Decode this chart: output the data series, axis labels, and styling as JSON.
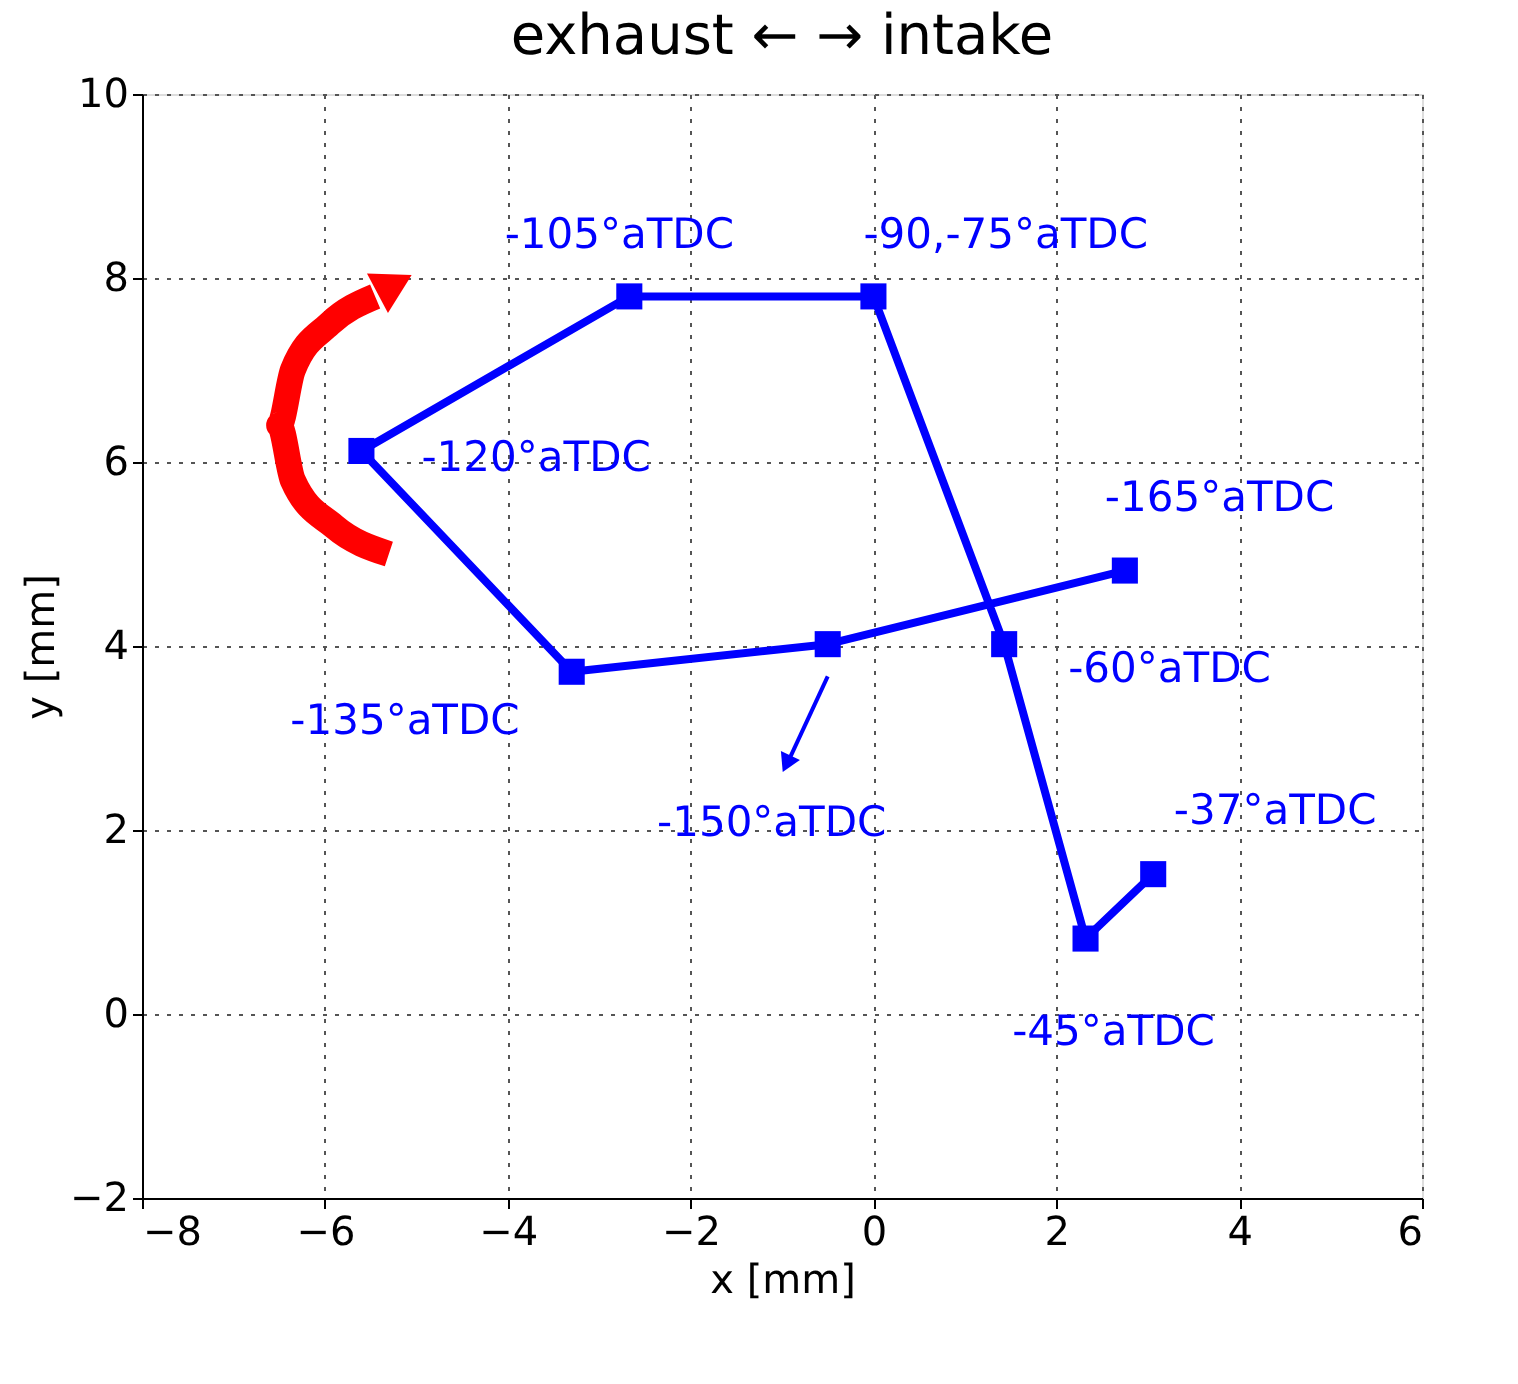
{
  "chart_data": {
    "type": "line",
    "title": "exhaust ← → intake",
    "xlabel": "x [mm]",
    "ylabel": "y [mm]",
    "series": [
      {
        "color": "#0000ff",
        "x": [
          2.75,
          -0.5,
          -3.3,
          -5.6,
          -2.67,
          0.0,
          1.43,
          2.32,
          3.06
        ],
        "values": [
          4.82,
          4.02,
          3.72,
          6.12,
          7.8,
          7.8,
          4.02,
          0.82,
          1.52
        ]
      }
    ],
    "xlim": [
      -8,
      6
    ],
    "xticks": [
      -8,
      -6,
      -4,
      -2,
      0,
      2,
      4,
      6
    ],
    "ylim": [
      -2,
      10
    ],
    "yticks": [
      -2,
      0,
      2,
      4,
      6,
      8,
      10
    ],
    "grid": true,
    "marker": "square",
    "line_style": "solid",
    "annotations": [
      {
        "text": "-165°aTDC",
        "x": 2.75,
        "y": 4.82
      },
      "-150°aTDC",
      {
        "text": "-135°aTDC",
        "x": -3.3,
        "y": 3.72
      },
      {
        "text": "-120°aTDC",
        "x": -5.6,
        "y": 6.12
      },
      {
        "text": "-105°aTDC",
        "x": -2.67,
        "y": 7.8
      },
      {
        "text": "-90,-75°aTDC",
        "x": 0.0,
        "y": 7.8
      },
      {
        "text": "-60°aTDC",
        "x": 1.43,
        "y": 4.02
      },
      {
        "text": "-45°aTDC",
        "x": 2.32,
        "y": 0.82
      },
      {
        "text": "-37°aTDC",
        "x": 3.06,
        "y": 1.52
      }
    ]
  }
}
